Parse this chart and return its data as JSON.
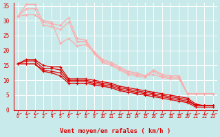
{
  "title": "",
  "xlabel": "Vent moyen/en rafales ( km/h )",
  "bg_color": "#c8eaea",
  "grid_color": "#b0d8d8",
  "x_values": [
    0,
    1,
    2,
    3,
    4,
    5,
    6,
    7,
    8,
    9,
    10,
    11,
    12,
    13,
    14,
    15,
    16,
    17,
    18,
    19,
    20,
    21,
    22,
    23
  ],
  "lines_pink": [
    [
      31.5,
      35.5,
      35.5,
      29.5,
      29.0,
      28.5,
      31.0,
      24.0,
      23.5,
      19.5,
      16.5,
      15.5,
      14.0,
      12.5,
      12.0,
      11.5,
      13.5,
      12.0,
      11.5,
      11.5,
      5.5,
      5.5,
      5.5,
      5.5
    ],
    [
      31.5,
      34.0,
      34.0,
      28.5,
      28.0,
      27.0,
      29.5,
      23.0,
      23.0,
      19.0,
      16.0,
      15.0,
      13.5,
      12.0,
      11.5,
      11.0,
      13.0,
      11.5,
      11.0,
      11.0,
      5.5,
      5.5,
      5.5,
      5.5
    ],
    [
      31.5,
      32.0,
      32.0,
      30.0,
      29.5,
      22.5,
      24.0,
      21.5,
      22.0,
      19.5,
      17.0,
      16.0,
      14.5,
      13.0,
      12.5,
      11.5,
      12.0,
      11.0,
      10.5,
      10.5,
      5.5,
      5.5,
      5.5,
      5.5
    ]
  ],
  "lines_red": [
    [
      15.5,
      17.0,
      17.0,
      15.0,
      14.5,
      14.5,
      10.5,
      10.5,
      10.5,
      10.0,
      9.5,
      9.0,
      8.0,
      7.5,
      7.0,
      6.5,
      6.0,
      5.5,
      5.0,
      4.5,
      4.0,
      2.0,
      1.5,
      1.5
    ],
    [
      15.5,
      16.5,
      16.5,
      14.0,
      14.0,
      13.5,
      10.0,
      10.0,
      10.0,
      9.5,
      9.0,
      8.5,
      7.5,
      7.0,
      6.5,
      6.0,
      5.5,
      5.0,
      4.5,
      4.0,
      3.5,
      1.5,
      1.5,
      1.5
    ],
    [
      15.5,
      15.5,
      15.5,
      13.5,
      13.0,
      12.5,
      9.5,
      9.5,
      9.5,
      9.0,
      8.5,
      8.0,
      7.0,
      6.5,
      6.0,
      5.5,
      5.0,
      4.5,
      4.0,
      3.5,
      3.0,
      1.5,
      1.5,
      1.5
    ],
    [
      15.5,
      15.5,
      15.5,
      13.0,
      12.5,
      11.5,
      9.0,
      9.0,
      9.0,
      8.5,
      8.0,
      7.5,
      6.5,
      6.0,
      5.5,
      5.0,
      4.5,
      4.0,
      3.5,
      3.0,
      2.5,
      1.0,
      1.0,
      1.0
    ]
  ],
  "ylim": [
    0,
    36
  ],
  "yticks": [
    0,
    5,
    10,
    15,
    20,
    25,
    30,
    35
  ],
  "line_color_red": "#dd0000",
  "line_color_pink": "#ffaaaa",
  "tick_color": "#dd0000",
  "arrow_color": "#dd0000"
}
